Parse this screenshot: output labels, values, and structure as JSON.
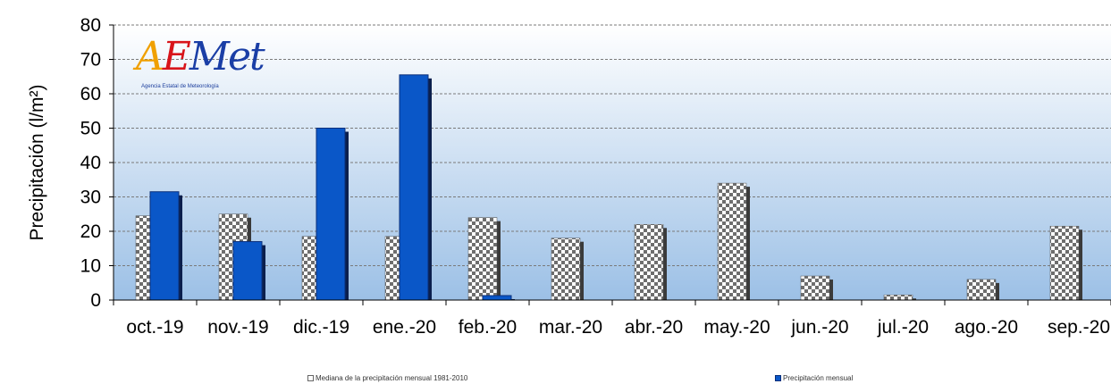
{
  "logo": {
    "text": "AEMet",
    "subtitle": "Agencia Estatal de Meteorología"
  },
  "legend": {
    "median_label": "Mediana de la precipitación mensual 1981-2010",
    "monthly_label": "Precipitación mensual"
  },
  "colors": {
    "monthly": "#0a57c8",
    "monthly_shadow": "#0b1f4d",
    "median_dark": "#6e6e6e",
    "median_light": "#ffffff",
    "plot_top": "#ffffff",
    "plot_bottom": "#9cc0e6",
    "grid": "#7a7a7a"
  },
  "chart_data": {
    "type": "bar",
    "title": "",
    "xlabel": "",
    "ylabel": "Precipitación (l/m²)",
    "ylim": [
      0,
      80
    ],
    "yticks": [
      0,
      10,
      20,
      30,
      40,
      50,
      60,
      70,
      80
    ],
    "grid": true,
    "categories": [
      "oct.-19",
      "nov.-19",
      "dic.-19",
      "ene.-20",
      "feb.-20",
      "mar.-20",
      "abr.-20",
      "may.-20",
      "jun.-20",
      "jul.-20",
      "ago.-20",
      "sep.-20"
    ],
    "series": [
      {
        "name": "Mediana de la precipitación mensual 1981-2010",
        "values": [
          24.5,
          25,
          18.5,
          18.5,
          24,
          18,
          22,
          34,
          7,
          1.5,
          6,
          21.5
        ]
      },
      {
        "name": "Precipitación mensual",
        "values": [
          31.5,
          17,
          50,
          65.5,
          1.3,
          0,
          0,
          0,
          0,
          0,
          0,
          0
        ]
      }
    ]
  }
}
